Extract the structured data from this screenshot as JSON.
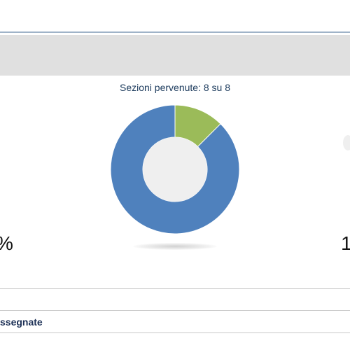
{
  "panel": {
    "sections_label": "Sezioni pervenute: 8 su 8",
    "left_edge_text": "%",
    "right_edge_text": "1",
    "assigned_label": "ssegnate"
  },
  "chart_data": {
    "type": "pie",
    "style": "donut",
    "slices": [
      {
        "value": 0.125,
        "color": "#9bbb59"
      },
      {
        "value": 0.875,
        "color": "#4f81bd"
      }
    ],
    "center_color": "#efefef"
  }
}
